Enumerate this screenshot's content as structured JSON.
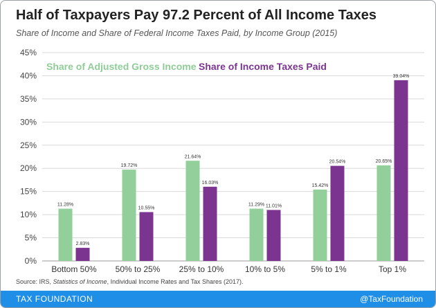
{
  "title": "Half of Taxpayers Pay 97.2 Percent of All Income Taxes",
  "subtitle": "Share of Income and Share of Federal Income Taxes Paid, by Income Group (2015)",
  "source": {
    "prefix": "Source: IRS, ",
    "publication": "Statistics of Income",
    "suffix": ", Individual Income Rates and Tax Shares (2017)."
  },
  "footer": {
    "brand": "TAX FOUNDATION",
    "handle": "@TaxFoundation"
  },
  "colors": {
    "agi": "#93cf9b",
    "tax": "#7b3590",
    "footer": "#1f8ee6"
  },
  "chart_data": {
    "type": "bar",
    "categories": [
      "Bottom 50%",
      "50% to 25%",
      "25% to 10%",
      "10% to 5%",
      "5% to 1%",
      "Top 1%"
    ],
    "series": [
      {
        "name": "Share of Adjusted Gross Income",
        "values": [
          11.28,
          19.72,
          21.64,
          11.29,
          15.42,
          20.65
        ],
        "labels": [
          "11.28%",
          "19.72%",
          "21.64%",
          "11.29%",
          "15.42%",
          "20.65%"
        ]
      },
      {
        "name": "Share of Income Taxes Paid",
        "values": [
          2.83,
          10.55,
          16.03,
          11.01,
          20.54,
          39.04
        ],
        "labels": [
          "2.83%",
          "10.55%",
          "16.03%",
          "11.01%",
          "20.54%",
          "39.04%"
        ]
      }
    ],
    "ylim": [
      0,
      45
    ],
    "yticks": [
      "0%",
      "5%",
      "10%",
      "15%",
      "20%",
      "25%",
      "30%",
      "35%",
      "40%",
      "45%"
    ],
    "ytick_values": [
      0,
      5,
      10,
      15,
      20,
      25,
      30,
      35,
      40,
      45
    ],
    "grid": true,
    "legend": "top-left"
  }
}
